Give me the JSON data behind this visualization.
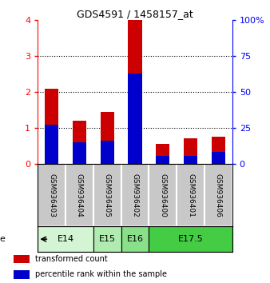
{
  "title": "GDS4591 / 1458157_at",
  "samples": [
    "GSM936403",
    "GSM936404",
    "GSM936405",
    "GSM936402",
    "GSM936400",
    "GSM936401",
    "GSM936406"
  ],
  "transformed_count": [
    2.1,
    1.2,
    1.45,
    4.0,
    0.57,
    0.72,
    0.75
  ],
  "percentile_rank_scaled": [
    1.1,
    0.6,
    0.65,
    2.5,
    0.22,
    0.22,
    0.35
  ],
  "age_groups": [
    {
      "label": "E14",
      "samples": [
        0,
        1
      ],
      "color": "#d4f5d4"
    },
    {
      "label": "E15",
      "samples": [
        2
      ],
      "color": "#b0ebb0"
    },
    {
      "label": "E16",
      "samples": [
        3
      ],
      "color": "#88e088"
    },
    {
      "label": "E17.5",
      "samples": [
        4,
        5,
        6
      ],
      "color": "#44cc44"
    }
  ],
  "bar_color_red": "#cc0000",
  "bar_color_blue": "#0000cc",
  "ylim_left": [
    0,
    4
  ],
  "ylim_right": [
    0,
    100
  ],
  "yticks_left": [
    0,
    1,
    2,
    3,
    4
  ],
  "yticks_right": [
    0,
    25,
    50,
    75,
    100
  ],
  "background_color": "#ffffff",
  "label_area_color": "#c8c8c8",
  "bar_width": 0.5,
  "legend_labels": [
    "transformed count",
    "percentile rank within the sample"
  ]
}
